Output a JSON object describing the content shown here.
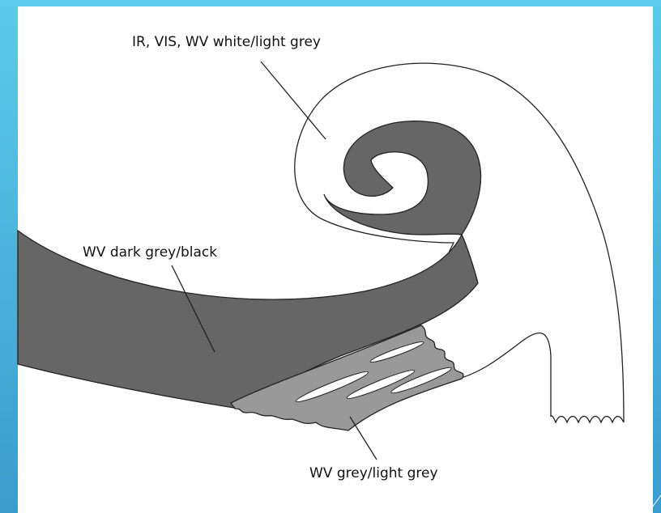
{
  "labels": {
    "top": "IR, VIS, WV white/light grey",
    "middle": "WV dark grey/black",
    "bottom": "WV grey/light grey"
  }
}
